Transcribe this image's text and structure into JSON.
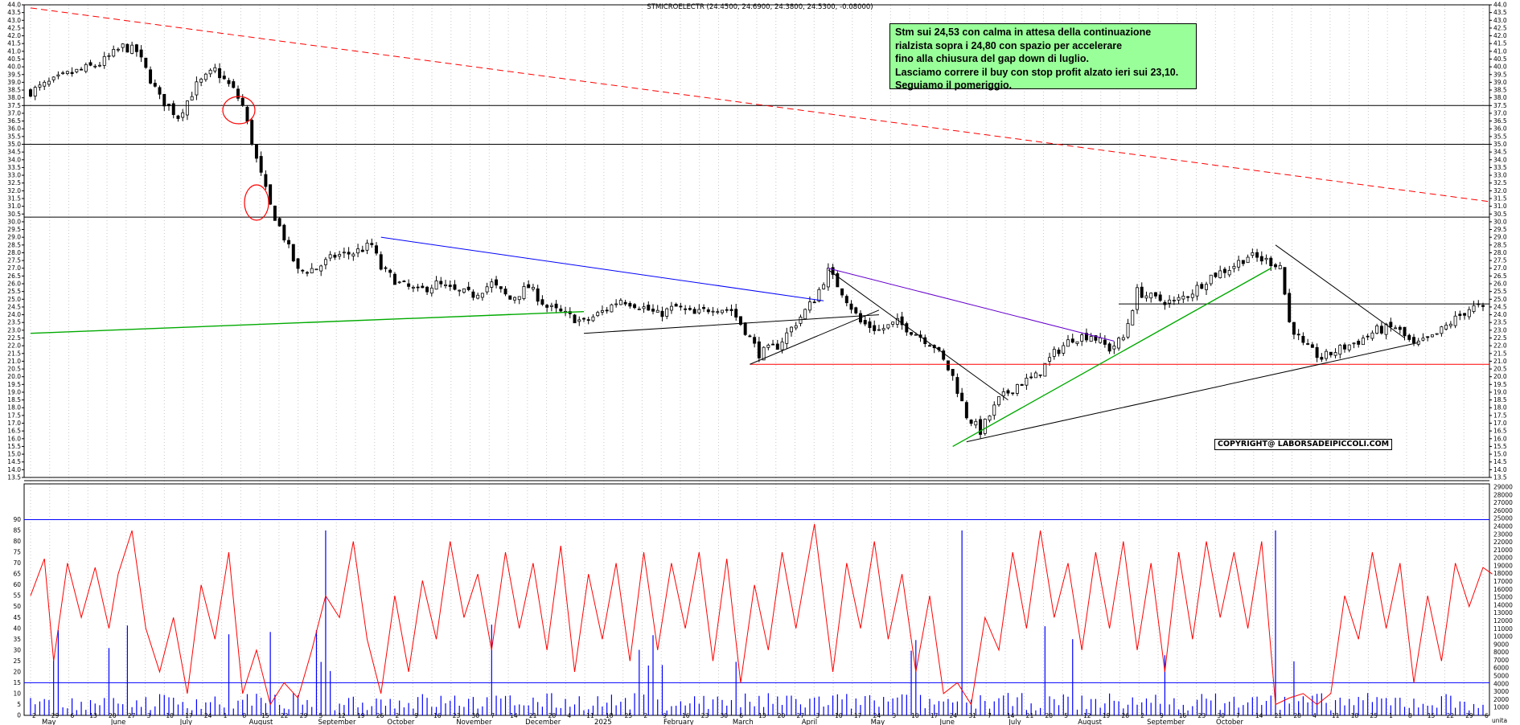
{
  "chart_data": [
    {
      "type": "candlestick",
      "title": "STMICROELECTR (24.4500, 24.6900, 24.3800, 24.5300, -0.08000)",
      "ylim": [
        13.5,
        44.0
      ],
      "y_tick_step": 0.5,
      "x_axis_labels": [
        "May",
        "June",
        "July",
        "August",
        "September",
        "October",
        "November",
        "December",
        "2025",
        "February",
        "March",
        "April",
        "May",
        "June",
        "July",
        "August",
        "September",
        "October"
      ],
      "day_ticks": [
        "2",
        "29",
        "6",
        "13",
        "20",
        "27",
        "3",
        "10",
        "17",
        "24",
        "1",
        "8",
        "15",
        "22",
        "29",
        "5",
        "12",
        "19",
        "26",
        "2",
        "9",
        "16",
        "23",
        "30",
        "7",
        "14",
        "21",
        "28",
        "4",
        "11",
        "18",
        "25",
        "2",
        "9",
        "16",
        "23",
        "30",
        "6",
        "13",
        "20",
        "27",
        "3",
        "10",
        "17",
        "24",
        "3",
        "10",
        "17",
        "24",
        "31",
        "7",
        "14",
        "21",
        "28",
        "5",
        "12",
        "19",
        "26",
        "2",
        "9",
        "16",
        "23",
        "30",
        "7",
        "14",
        "21",
        "28",
        "4",
        "11",
        "18",
        "25",
        "1",
        "8",
        "15",
        "22",
        "29",
        "6"
      ],
      "price_path": [
        [
          0,
          38.4
        ],
        [
          8,
          39.5
        ],
        [
          15,
          40.2
        ],
        [
          20,
          41.3
        ],
        [
          23,
          41.0
        ],
        [
          28,
          38.0
        ],
        [
          32,
          36.8
        ],
        [
          36,
          38.8
        ],
        [
          40,
          39.8
        ],
        [
          44,
          38.5
        ],
        [
          46,
          37.5
        ],
        [
          49,
          34.0
        ],
        [
          52,
          31.0
        ],
        [
          55,
          29.0
        ],
        [
          58,
          26.8
        ],
        [
          62,
          27.0
        ],
        [
          66,
          27.8
        ],
        [
          70,
          28.0
        ],
        [
          74,
          28.5
        ],
        [
          76,
          27.0
        ],
        [
          80,
          26.0
        ],
        [
          84,
          25.5
        ],
        [
          88,
          26.0
        ],
        [
          92,
          25.5
        ],
        [
          96,
          25.3
        ],
        [
          100,
          26.0
        ],
        [
          104,
          25.0
        ],
        [
          108,
          25.8
        ],
        [
          112,
          24.5
        ],
        [
          116,
          24.0
        ],
        [
          120,
          23.5
        ],
        [
          124,
          24.2
        ],
        [
          128,
          25.0
        ],
        [
          132,
          24.6
        ],
        [
          136,
          24.0
        ],
        [
          140,
          24.5
        ],
        [
          144,
          24.0
        ],
        [
          148,
          24.5
        ],
        [
          152,
          24.3
        ],
        [
          155,
          23.0
        ],
        [
          158,
          21.5
        ],
        [
          162,
          22.0
        ],
        [
          166,
          23.5
        ],
        [
          170,
          25.0
        ],
        [
          173,
          26.8
        ],
        [
          176,
          25.5
        ],
        [
          180,
          23.5
        ],
        [
          184,
          23.0
        ],
        [
          188,
          23.5
        ],
        [
          192,
          22.8
        ],
        [
          196,
          22.0
        ],
        [
          200,
          20.0
        ],
        [
          203,
          17.5
        ],
        [
          206,
          16.5
        ],
        [
          210,
          18.5
        ],
        [
          214,
          19.5
        ],
        [
          218,
          20.0
        ],
        [
          222,
          21.5
        ],
        [
          226,
          22.5
        ],
        [
          230,
          22.7
        ],
        [
          234,
          21.8
        ],
        [
          237,
          22.5
        ],
        [
          240,
          25.5
        ],
        [
          244,
          25.0
        ],
        [
          248,
          24.8
        ],
        [
          252,
          25.5
        ],
        [
          256,
          26.5
        ],
        [
          260,
          27.0
        ],
        [
          264,
          27.8
        ],
        [
          268,
          27.5
        ],
        [
          271,
          27.2
        ],
        [
          273,
          23.5
        ],
        [
          276,
          22.0
        ],
        [
          280,
          21.2
        ],
        [
          284,
          21.8
        ],
        [
          288,
          22.3
        ],
        [
          292,
          23.0
        ],
        [
          296,
          23.2
        ],
        [
          300,
          22.0
        ],
        [
          304,
          22.5
        ],
        [
          308,
          23.5
        ],
        [
          312,
          24.4
        ],
        [
          314,
          24.53
        ]
      ],
      "lines": [
        {
          "color": "#ff0000",
          "style": "dashed",
          "name": "",
          "points": [
            [
              0,
              43.8
            ],
            [
              380,
              31.3
            ]
          ]
        },
        {
          "color": "#0000ff",
          "name": "",
          "points": [
            [
              76,
              29.0
            ],
            [
              172,
              24.9
            ]
          ]
        },
        {
          "color": "#00aa00",
          "name": "",
          "points": [
            [
              0,
              22.8
            ],
            [
              120,
              24.2
            ]
          ]
        },
        {
          "color": "#6600cc",
          "name": "",
          "points": [
            [
              173,
              27.0
            ],
            [
              235,
              22.3
            ]
          ]
        },
        {
          "color": "#000000",
          "name": "",
          "points": [
            [
              173,
              26.9
            ],
            [
              212,
              18.5
            ]
          ]
        },
        {
          "color": "#00aa00",
          "name": "",
          "points": [
            [
              200,
              15.5
            ],
            [
              269,
              27.0
            ]
          ]
        },
        {
          "color": "#000000",
          "name": "",
          "points": [
            [
              203,
              15.8
            ],
            [
              301,
              22.2
            ]
          ]
        },
        {
          "color": "#000000",
          "name": "",
          "points": [
            [
              270,
              28.5
            ],
            [
              298,
              22.5
            ]
          ]
        },
        {
          "color": "#000000",
          "name": "",
          "points": [
            [
              120,
              22.8
            ],
            [
              184,
              24.0
            ]
          ]
        },
        {
          "color": "#000000",
          "name": "",
          "points": [
            [
              156,
              20.8
            ],
            [
              184,
              24.3
            ]
          ]
        }
      ],
      "horizontal_levels": [
        {
          "value": 37.5,
          "color": "#000000"
        },
        {
          "value": 35.0,
          "color": "#000000"
        },
        {
          "value": 30.3,
          "color": "#000000"
        },
        {
          "value": 20.8,
          "color": "#ff0000"
        },
        {
          "value": 24.7,
          "color": "#000000"
        }
      ]
    },
    {
      "type": "line",
      "oscillator_ylim": [
        0,
        95
      ],
      "oscillator_ticks": [
        0,
        5,
        10,
        15,
        20,
        25,
        30,
        35,
        40,
        45,
        50,
        55,
        60,
        65,
        70,
        75,
        80,
        85,
        90
      ],
      "volume_ticks": [
        1000,
        2000,
        3000,
        4000,
        5000,
        6000,
        7000,
        8000,
        9000,
        10000,
        11000,
        12000,
        13000,
        14000,
        15000,
        16000,
        17000,
        18000,
        19000,
        20000,
        21000,
        22000,
        23000,
        24000,
        25000,
        26000,
        27000,
        28000,
        29000
      ],
      "level_lines": [
        90,
        15
      ],
      "oscillator_path": [
        [
          0,
          55
        ],
        [
          3,
          72
        ],
        [
          5,
          25
        ],
        [
          8,
          70
        ],
        [
          11,
          45
        ],
        [
          14,
          68
        ],
        [
          17,
          40
        ],
        [
          19,
          65
        ],
        [
          22,
          85
        ],
        [
          25,
          40
        ],
        [
          28,
          20
        ],
        [
          31,
          45
        ],
        [
          34,
          10
        ],
        [
          37,
          60
        ],
        [
          40,
          35
        ],
        [
          43,
          75
        ],
        [
          46,
          10
        ],
        [
          49,
          30
        ],
        [
          52,
          5
        ],
        [
          55,
          15
        ],
        [
          58,
          8
        ],
        [
          61,
          30
        ],
        [
          64,
          55
        ],
        [
          67,
          45
        ],
        [
          70,
          80
        ],
        [
          73,
          35
        ],
        [
          76,
          10
        ],
        [
          79,
          55
        ],
        [
          82,
          20
        ],
        [
          85,
          62
        ],
        [
          88,
          35
        ],
        [
          91,
          80
        ],
        [
          94,
          45
        ],
        [
          97,
          65
        ],
        [
          100,
          30
        ],
        [
          103,
          75
        ],
        [
          106,
          40
        ],
        [
          109,
          70
        ],
        [
          112,
          30
        ],
        [
          115,
          78
        ],
        [
          118,
          20
        ],
        [
          121,
          65
        ],
        [
          124,
          35
        ],
        [
          127,
          70
        ],
        [
          130,
          25
        ],
        [
          133,
          75
        ],
        [
          136,
          30
        ],
        [
          139,
          70
        ],
        [
          142,
          40
        ],
        [
          145,
          75
        ],
        [
          148,
          25
        ],
        [
          151,
          72
        ],
        [
          154,
          15
        ],
        [
          157,
          60
        ],
        [
          160,
          30
        ],
        [
          163,
          75
        ],
        [
          166,
          40
        ],
        [
          170,
          88
        ],
        [
          174,
          20
        ],
        [
          177,
          70
        ],
        [
          180,
          40
        ],
        [
          183,
          80
        ],
        [
          186,
          35
        ],
        [
          189,
          65
        ],
        [
          192,
          20
        ],
        [
          195,
          55
        ],
        [
          198,
          10
        ],
        [
          201,
          15
        ],
        [
          204,
          5
        ],
        [
          207,
          45
        ],
        [
          210,
          30
        ],
        [
          213,
          75
        ],
        [
          216,
          40
        ],
        [
          219,
          85
        ],
        [
          222,
          45
        ],
        [
          225,
          70
        ],
        [
          228,
          30
        ],
        [
          231,
          75
        ],
        [
          234,
          40
        ],
        [
          237,
          80
        ],
        [
          240,
          30
        ],
        [
          243,
          70
        ],
        [
          246,
          20
        ],
        [
          249,
          75
        ],
        [
          252,
          35
        ],
        [
          255,
          80
        ],
        [
          258,
          45
        ],
        [
          261,
          75
        ],
        [
          264,
          40
        ],
        [
          267,
          80
        ],
        [
          270,
          5
        ],
        [
          273,
          8
        ],
        [
          276,
          10
        ],
        [
          279,
          5
        ],
        [
          282,
          10
        ],
        [
          285,
          55
        ],
        [
          288,
          35
        ],
        [
          291,
          75
        ],
        [
          294,
          40
        ],
        [
          297,
          70
        ],
        [
          300,
          15
        ],
        [
          303,
          55
        ],
        [
          306,
          25
        ],
        [
          309,
          70
        ],
        [
          312,
          50
        ],
        [
          315,
          68
        ],
        [
          317,
          65
        ]
      ]
    }
  ],
  "annotation": {
    "lines": [
      "Stm sui 24,53 con calma in attesa della continuazione",
      "rialzista sopra i 24,80 con spazio per accelerare",
      "fino alla chiusura del gap down di luglio.",
      "Lasciamo correre il buy con stop profit alzato ieri sui 23,10.",
      "Seguiamo il pomeriggio."
    ],
    "background": "#99ff99"
  },
  "copyright": "COPYRIGHT@ LABORSADEIPICCOLI.COM",
  "x_axis_suffix": "unita",
  "colors": {
    "candle": "#000000",
    "oscillator": "#ff0000",
    "volume": "#0000ff",
    "grid": "#c8c8c8"
  }
}
